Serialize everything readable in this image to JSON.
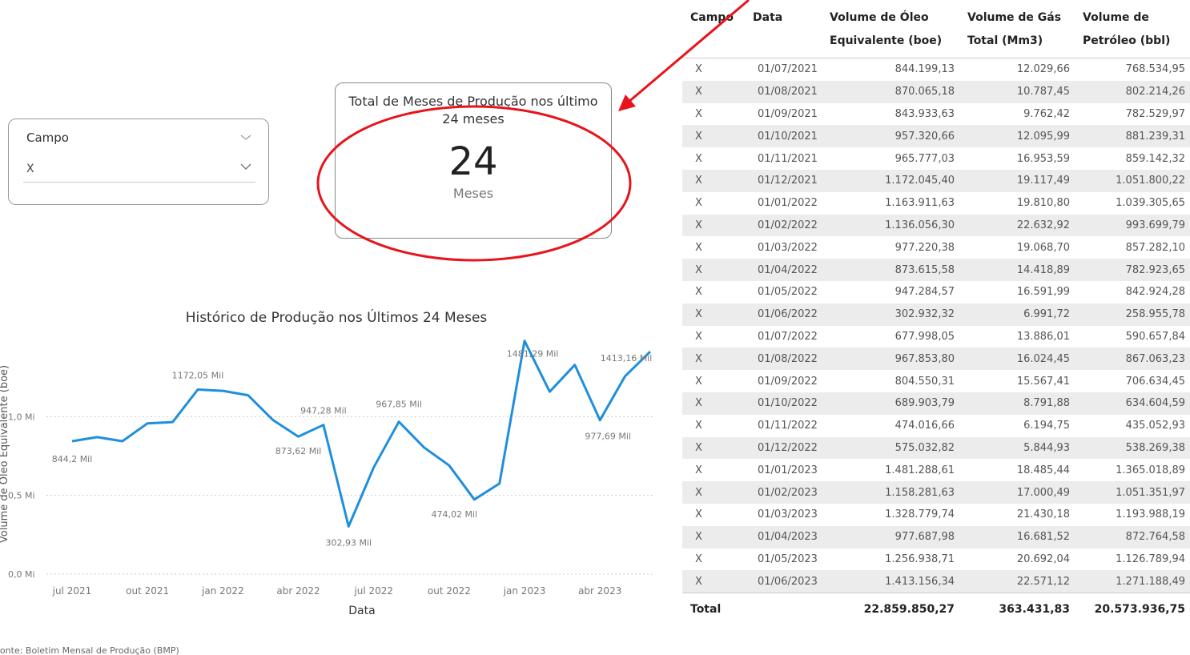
{
  "slicer": {
    "label": "Campo",
    "value": "X"
  },
  "card": {
    "title": "Total de Meses de Produção nos último 24 meses",
    "value": "24",
    "unit": "Meses"
  },
  "chart_data": {
    "type": "line",
    "title": "Histórico de Produção nos Últimos 24 Meses",
    "x_label": "Data",
    "y_label": "Volume de Óleo Equivalente (boe)",
    "categories": [
      "jul 2021",
      null,
      null,
      "out 2021",
      null,
      null,
      "jan 2022",
      null,
      null,
      "abr 2022",
      null,
      null,
      "jul 2022",
      null,
      null,
      "out 2022",
      null,
      null,
      "jan 2023",
      null,
      null,
      "abr 2023",
      null,
      null
    ],
    "series": [
      {
        "name": "Volume de Óleo Equivalente (boe)",
        "color": "#1f8fdc",
        "values": [
          0.84419913,
          0.87006518,
          0.84393363,
          0.95732066,
          0.96577703,
          1.1720454,
          1.16391163,
          1.1360563,
          0.97722038,
          0.87361558,
          0.94728457,
          0.30293232,
          0.67799805,
          0.9678538,
          0.80455031,
          0.68990379,
          0.47401666,
          0.57503282,
          1.48128861,
          1.15828163,
          1.32877974,
          0.97768798,
          1.25693871,
          1.41315634
        ],
        "value_labels": [
          "844,2 Mil",
          null,
          null,
          null,
          null,
          "1172,05 Mil",
          null,
          null,
          null,
          "873,62 Mil",
          "947,28 Mil",
          "302,93 Mil",
          null,
          "967,85 Mil",
          null,
          null,
          "474,02 Mil",
          null,
          "1481,29 Mil",
          null,
          null,
          "977,69 Mil",
          null,
          "1413,16 Mil"
        ]
      }
    ],
    "ylim": [
      0,
      1.5
    ],
    "yticks": [
      {
        "value": 0,
        "label": "0,0 Mi"
      },
      {
        "value": 0.5,
        "label": "0,5 Mi"
      },
      {
        "value": 1,
        "label": "1,0 Mi"
      }
    ],
    "grid": true
  },
  "source": "Fonte: Boletim Mensal de Produção (BMP)",
  "table": {
    "header": [
      "Campo",
      "Data",
      "Volume de Óleo Equivalente (boe)",
      "Volume de Gás Total (Mm3)",
      "Volume de Petróleo (bbl)"
    ],
    "rows": [
      [
        "X",
        "01/07/2021",
        "844.199,13",
        "12.029,66",
        "768.534,95"
      ],
      [
        "X",
        "01/08/2021",
        "870.065,18",
        "10.787,45",
        "802.214,26"
      ],
      [
        "X",
        "01/09/2021",
        "843.933,63",
        "9.762,42",
        "782.529,97"
      ],
      [
        "X",
        "01/10/2021",
        "957.320,66",
        "12.095,99",
        "881.239,31"
      ],
      [
        "X",
        "01/11/2021",
        "965.777,03",
        "16.953,59",
        "859.142,32"
      ],
      [
        "X",
        "01/12/2021",
        "1.172.045,40",
        "19.117,49",
        "1.051.800,22"
      ],
      [
        "X",
        "01/01/2022",
        "1.163.911,63",
        "19.810,80",
        "1.039.305,65"
      ],
      [
        "X",
        "01/02/2022",
        "1.136.056,30",
        "22.632,92",
        "993.699,79"
      ],
      [
        "X",
        "01/03/2022",
        "977.220,38",
        "19.068,70",
        "857.282,10"
      ],
      [
        "X",
        "01/04/2022",
        "873.615,58",
        "14.418,89",
        "782.923,65"
      ],
      [
        "X",
        "01/05/2022",
        "947.284,57",
        "16.591,99",
        "842.924,28"
      ],
      [
        "X",
        "01/06/2022",
        "302.932,32",
        "6.991,72",
        "258.955,78"
      ],
      [
        "X",
        "01/07/2022",
        "677.998,05",
        "13.886,01",
        "590.657,84"
      ],
      [
        "X",
        "01/08/2022",
        "967.853,80",
        "16.024,45",
        "867.063,23"
      ],
      [
        "X",
        "01/09/2022",
        "804.550,31",
        "15.567,41",
        "706.634,45"
      ],
      [
        "X",
        "01/10/2022",
        "689.903,79",
        "8.791,88",
        "634.604,59"
      ],
      [
        "X",
        "01/11/2022",
        "474.016,66",
        "6.194,75",
        "435.052,93"
      ],
      [
        "X",
        "01/12/2022",
        "575.032,82",
        "5.844,93",
        "538.269,38"
      ],
      [
        "X",
        "01/01/2023",
        "1.481.288,61",
        "18.485,44",
        "1.365.018,89"
      ],
      [
        "X",
        "01/02/2023",
        "1.158.281,63",
        "17.000,49",
        "1.051.351,97"
      ],
      [
        "X",
        "01/03/2023",
        "1.328.779,74",
        "21.430,18",
        "1.193.988,19"
      ],
      [
        "X",
        "01/04/2023",
        "977.687,98",
        "16.681,52",
        "872.764,58"
      ],
      [
        "X",
        "01/05/2023",
        "1.256.938,71",
        "20.692,04",
        "1.126.789,94"
      ],
      [
        "X",
        "01/06/2023",
        "1.413.156,34",
        "22.571,12",
        "1.271.188,49"
      ]
    ],
    "total": [
      "Total",
      "22.859.850,27",
      "363.431,83",
      "20.573.936,75"
    ]
  }
}
